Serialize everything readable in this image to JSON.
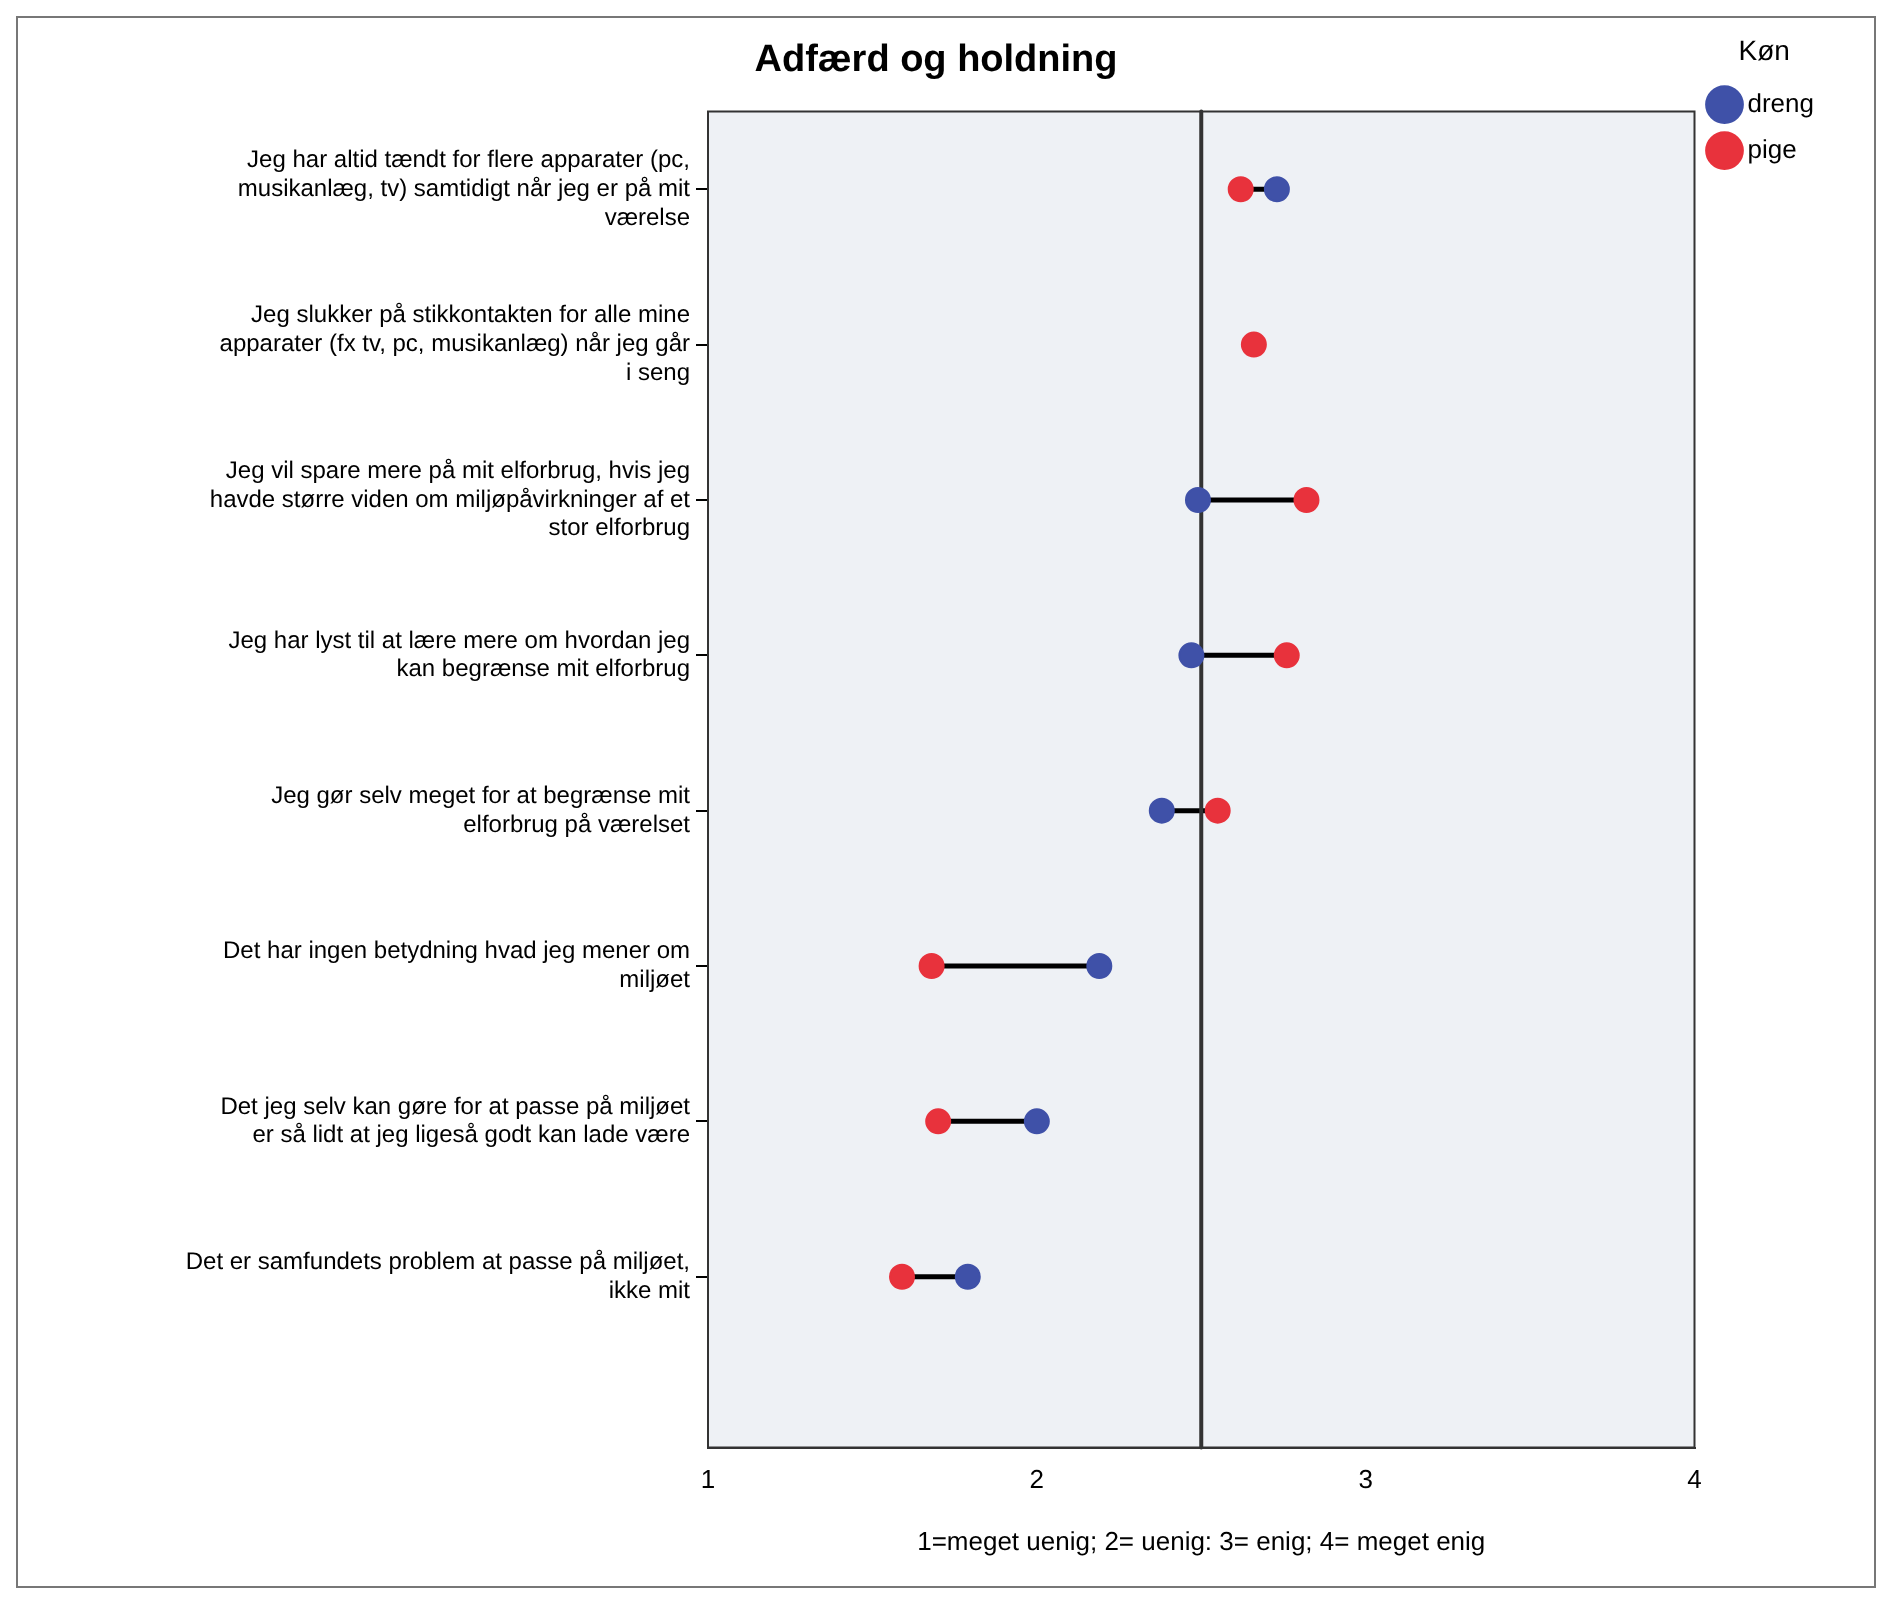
{
  "chart_data": {
    "type": "scatter",
    "title": "Adfærd og holdning",
    "xlabel": "1=meget uenig; 2= uenig: 3= enig; 4= meget enig",
    "legend_title": "Køn",
    "legend": "top right",
    "categories": [
      "Jeg har altid tændt for flere apparater (pc, musikanlæg, tv) samtidigt når jeg er på mit værelse",
      "Jeg slukker på stikkontakten for alle mine apparater (fx tv, pc, musikanlæg) når jeg går i seng",
      "Jeg vil spare mere på mit elforbrug, hvis jeg havde større viden om miljøpåvirkninger af et stor elforbrug",
      "Jeg har lyst til at lære mere om hvordan jeg kan begrænse mit elforbrug",
      "Jeg gør selv meget for at begrænse mit elforbrug på værelset",
      "Det har ingen betydning hvad jeg mener om miljøet",
      "Det jeg selv kan gøre for at passe på miljøet er så lidt at jeg ligeså godt kan lade være",
      "Det er samfundets problem at passe på miljøet, ikke mit"
    ],
    "series": [
      {
        "name": "dreng",
        "color": "#3f51a8",
        "values": [
          2.73,
          null,
          2.49,
          2.47,
          2.38,
          2.19,
          2.0,
          1.79
        ]
      },
      {
        "name": "pige",
        "color": "#e8323c",
        "values": [
          2.62,
          2.66,
          2.82,
          2.76,
          2.55,
          1.68,
          1.7,
          1.59
        ]
      }
    ],
    "xlim": [
      1,
      4
    ],
    "xticks": [
      1,
      2,
      3,
      4
    ],
    "marker": "circle",
    "orientation": "horizontal",
    "grid": false,
    "ref_lines": [
      {
        "axis": "x",
        "value": 2.5,
        "color": "#333333"
      }
    ]
  }
}
